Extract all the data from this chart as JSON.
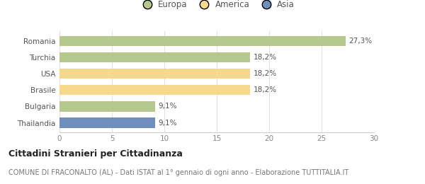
{
  "categories": [
    "Thailandia",
    "Bulgaria",
    "Brasile",
    "USA",
    "Turchia",
    "Romania"
  ],
  "values": [
    9.1,
    9.1,
    18.2,
    18.2,
    18.2,
    27.3
  ],
  "labels": [
    "9,1%",
    "9,1%",
    "18,2%",
    "18,2%",
    "18,2%",
    "27,3%"
  ],
  "bar_colors": [
    "#6e8fbe",
    "#b5c98e",
    "#f7d98e",
    "#f7d98e",
    "#b5c98e",
    "#b5c98e"
  ],
  "legend_items": [
    {
      "label": "Europa",
      "color": "#b5c98e"
    },
    {
      "label": "America",
      "color": "#f7d98e"
    },
    {
      "label": "Asia",
      "color": "#6e8fbe"
    }
  ],
  "xlim": [
    0,
    30
  ],
  "xticks": [
    0,
    5,
    10,
    15,
    20,
    25,
    30
  ],
  "title": "Cittadini Stranieri per Cittadinanza",
  "subtitle": "COMUNE DI FRACONALTO (AL) - Dati ISTAT al 1° gennaio di ogni anno - Elaborazione TUTTITALIA.IT",
  "background_color": "#ffffff",
  "title_fontsize": 9,
  "subtitle_fontsize": 7,
  "label_fontsize": 7.5,
  "tick_fontsize": 7.5,
  "legend_fontsize": 8.5
}
